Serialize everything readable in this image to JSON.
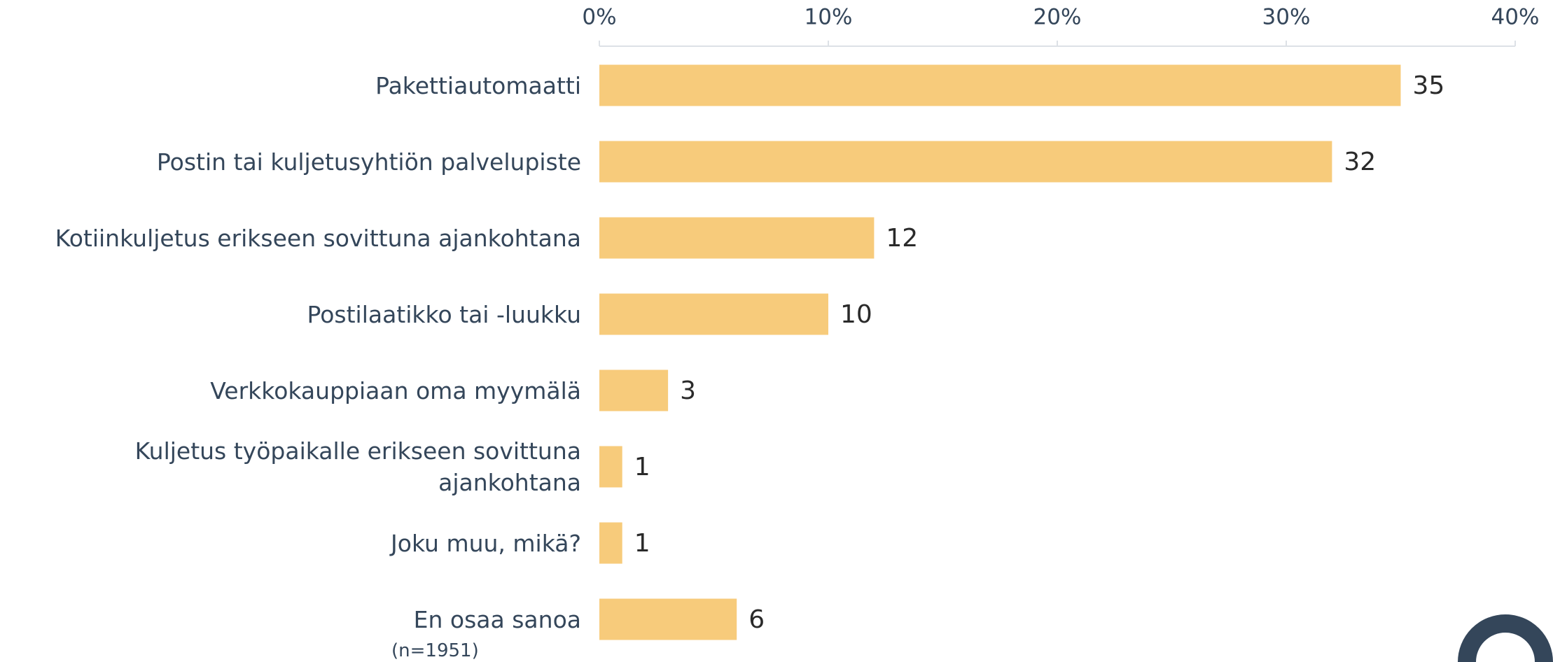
{
  "chart_data": {
    "type": "bar",
    "orientation": "horizontal",
    "categories": [
      "Pakettiautomaatti",
      "Postin tai kuljetusyhtiön palvelupiste",
      "Kotiinkuljetus erikseen sovittuna ajankohtana",
      "Postilaatikko tai -luukku",
      "Verkkokauppiaan oma myymälä",
      "Kuljetus työpaikalle erikseen sovittuna ajankohtana",
      "Joku muu, mikä?",
      "En osaa sanoa"
    ],
    "values": [
      35,
      32,
      12,
      10,
      3,
      1,
      1,
      6
    ],
    "color": "#f7cb7b",
    "xlim": [
      0,
      40
    ],
    "xticks": [
      {
        "value": 0,
        "label": "0%"
      },
      {
        "value": 10,
        "label": "10%"
      },
      {
        "value": 20,
        "label": "20%"
      },
      {
        "value": 30,
        "label": "30%"
      },
      {
        "value": 40,
        "label": "40%"
      }
    ],
    "note": "(n=1951)"
  }
}
